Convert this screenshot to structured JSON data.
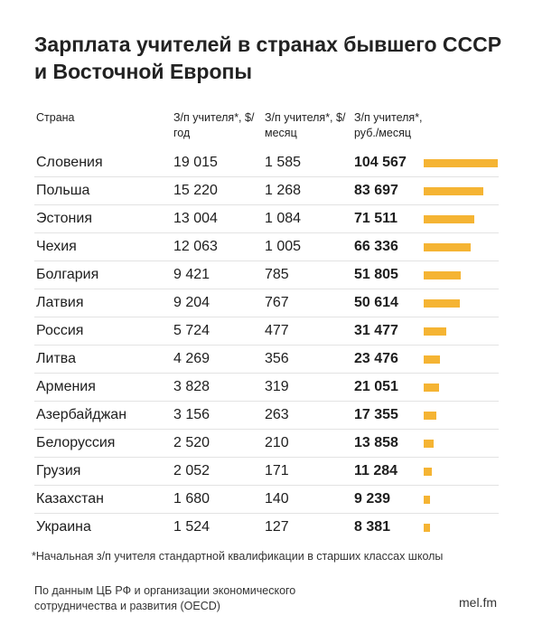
{
  "title": "Зарплата учителей в странах бывшего СССР и Восточной Европы",
  "columns": {
    "country": "Страна",
    "year": "З/п учителя*, $/год",
    "month": "З/п учителя*, $/месяц",
    "rub": "З/п учителя*, руб./месяц"
  },
  "chart_data": {
    "type": "bar",
    "title": "Зарплата учителей в странах бывшего СССР и Восточной Европы",
    "categories": [
      "Словения",
      "Польша",
      "Эстония",
      "Чехия",
      "Болгария",
      "Латвия",
      "Россия",
      "Литва",
      "Армения",
      "Азербайджан",
      "Белоруссия",
      "Грузия",
      "Казахстан",
      "Украина"
    ],
    "series": [
      {
        "name": "З/п учителя*, $/год",
        "values": [
          19015,
          15220,
          13004,
          12063,
          9421,
          9204,
          5724,
          4269,
          3828,
          3156,
          2520,
          2052,
          1680,
          1524
        ]
      },
      {
        "name": "З/п учителя*, $/месяц",
        "values": [
          1585,
          1268,
          1084,
          1005,
          785,
          767,
          477,
          356,
          319,
          263,
          210,
          171,
          140,
          127
        ]
      },
      {
        "name": "З/п учителя*, руб./месяц",
        "values": [
          104567,
          83697,
          71511,
          66336,
          51805,
          50614,
          31477,
          23476,
          21051,
          17355,
          13858,
          11284,
          9239,
          8381
        ]
      }
    ],
    "rows": [
      {
        "country": "Словения",
        "year": "19 015",
        "month": "1 585",
        "rub": "104 567",
        "value": 104567
      },
      {
        "country": "Польша",
        "year": "15 220",
        "month": "1 268",
        "rub": "83 697",
        "value": 83697
      },
      {
        "country": "Эстония",
        "year": "13 004",
        "month": "1 084",
        "rub": "71 511",
        "value": 71511
      },
      {
        "country": "Чехия",
        "year": "12 063",
        "month": "1 005",
        "rub": "66 336",
        "value": 66336
      },
      {
        "country": "Болгария",
        "year": "9 421",
        "month": "785",
        "rub": "51 805",
        "value": 51805
      },
      {
        "country": "Латвия",
        "year": "9 204",
        "month": "767",
        "rub": "50 614",
        "value": 50614
      },
      {
        "country": "Россия",
        "year": "5 724",
        "month": "477",
        "rub": "31 477",
        "value": 31477
      },
      {
        "country": "Литва",
        "year": "4 269",
        "month": "356",
        "rub": "23 476",
        "value": 23476
      },
      {
        "country": "Армения",
        "year": "3 828",
        "month": "319",
        "rub": "21 051",
        "value": 21051
      },
      {
        "country": "Азербайджан",
        "year": "3 156",
        "month": "263",
        "rub": "17 355",
        "value": 17355
      },
      {
        "country": "Белоруссия",
        "year": "2 520",
        "month": "210",
        "rub": "13 858",
        "value": 13858
      },
      {
        "country": "Грузия",
        "year": "2 052",
        "month": "171",
        "rub": "11 284",
        "value": 11284
      },
      {
        "country": "Казахстан",
        "year": "1 680",
        "month": "140",
        "rub": "9 239",
        "value": 9239
      },
      {
        "country": "Украина",
        "year": "1 524",
        "month": "127",
        "rub": "8 381",
        "value": 8381
      }
    ],
    "bar_color": "#f5b433",
    "xlim": [
      0,
      104567
    ],
    "grid": false
  },
  "footnote": "*Начальная з/п учителя стандартной квалификации в старших классах школы",
  "source": "По данным ЦБ РФ и организации экономического сотрудничества и развития (OECD)",
  "brand": "mel.fm"
}
